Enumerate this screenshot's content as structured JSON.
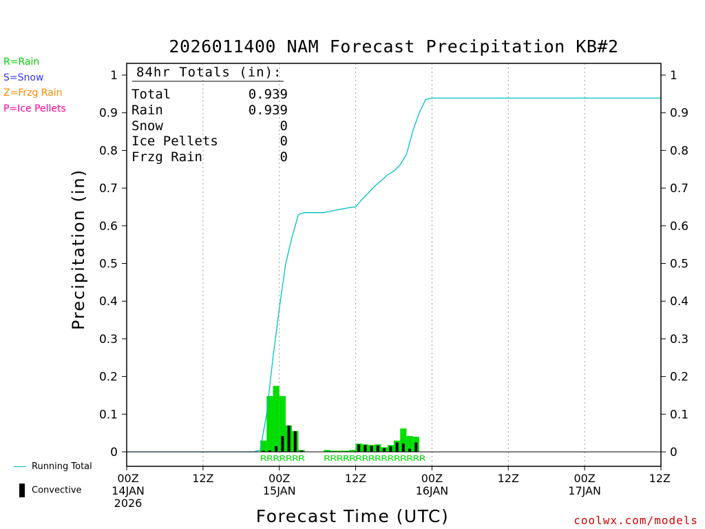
{
  "legend_types": [
    {
      "label": "R=Rain",
      "color": "#00cc00"
    },
    {
      "label": "S=Snow",
      "color": "#3333ff"
    },
    {
      "label": "Z=Frzg Rain",
      "color": "#ff8800"
    },
    {
      "label": "P=Ice Pellets",
      "color": "#ff0099"
    }
  ],
  "footer_legend": {
    "running_total": "Running Total",
    "convective": "Convective"
  },
  "credit": "coolwx.com/models",
  "totals_box": {
    "title": "84hr Totals (in):",
    "rows": [
      {
        "label": "Total",
        "value": "0.939"
      },
      {
        "label": "Rain",
        "value": "0.939"
      },
      {
        "label": "Snow",
        "value": "0"
      },
      {
        "label": "Ice Pellets",
        "value": "0"
      },
      {
        "label": "Frzg Rain",
        "value": "0"
      }
    ]
  },
  "colors": {
    "running_total": "#00bfbf",
    "rain_bar": "#00dd00",
    "convective_bar": "#000000",
    "grid": "#999999"
  },
  "chart_data": {
    "type": "bar",
    "title": "2026011400 NAM Forecast Precipitation KB#2",
    "xlabel": "Forecast Time (UTC)",
    "ylabel": "Precipitation (in)",
    "xlim": [
      0,
      84
    ],
    "ylim": [
      0,
      1.0
    ],
    "y_ticks": [
      "0",
      "0.1",
      "0.2",
      "0.3",
      "0.4",
      "0.5",
      "0.6",
      "0.7",
      "0.8",
      "0.9",
      "1"
    ],
    "x_ticks": [
      {
        "hour": 0,
        "lines": [
          "00Z",
          "14JAN",
          "2026"
        ]
      },
      {
        "hour": 12,
        "lines": [
          "12Z"
        ]
      },
      {
        "hour": 24,
        "lines": [
          "00Z",
          "15JAN"
        ]
      },
      {
        "hour": 36,
        "lines": [
          "12Z"
        ]
      },
      {
        "hour": 48,
        "lines": [
          "00Z",
          "16JAN"
        ]
      },
      {
        "hour": 60,
        "lines": [
          "12Z"
        ]
      },
      {
        "hour": 72,
        "lines": [
          "00Z",
          "17JAN"
        ]
      },
      {
        "hour": 84,
        "lines": [
          "12Z"
        ]
      }
    ],
    "grid_hours": [
      12,
      24,
      36,
      48,
      60,
      72
    ],
    "bar_width_hours": 1,
    "precip_bars": [
      {
        "hour": 21.5,
        "value": 0.03
      },
      {
        "hour": 22.5,
        "value": 0.148
      },
      {
        "hour": 23.5,
        "value": 0.175
      },
      {
        "hour": 24.5,
        "value": 0.148
      },
      {
        "hour": 25.5,
        "value": 0.07
      },
      {
        "hour": 26.5,
        "value": 0.055
      },
      {
        "hour": 27.5,
        "value": 0.005
      },
      {
        "hour": 31.5,
        "value": 0.005
      },
      {
        "hour": 32.5,
        "value": 0.003
      },
      {
        "hour": 33.5,
        "value": 0.003
      },
      {
        "hour": 34.5,
        "value": 0.003
      },
      {
        "hour": 35.5,
        "value": 0.005
      },
      {
        "hour": 36.5,
        "value": 0.022
      },
      {
        "hour": 37.5,
        "value": 0.02
      },
      {
        "hour": 38.5,
        "value": 0.018
      },
      {
        "hour": 39.5,
        "value": 0.02
      },
      {
        "hour": 40.5,
        "value": 0.012
      },
      {
        "hour": 41.5,
        "value": 0.018
      },
      {
        "hour": 42.5,
        "value": 0.03
      },
      {
        "hour": 43.5,
        "value": 0.062
      },
      {
        "hour": 44.5,
        "value": 0.042
      },
      {
        "hour": 45.5,
        "value": 0.04
      }
    ],
    "convective_bars": [
      {
        "hour": 21.5,
        "value": 0.003
      },
      {
        "hour": 22.5,
        "value": 0.004
      },
      {
        "hour": 23.5,
        "value": 0.015
      },
      {
        "hour": 24.5,
        "value": 0.042
      },
      {
        "hour": 25.5,
        "value": 0.07
      },
      {
        "hour": 26.5,
        "value": 0.055
      },
      {
        "hour": 27.5,
        "value": 0.003
      },
      {
        "hour": 36.5,
        "value": 0.02
      },
      {
        "hour": 37.5,
        "value": 0.018
      },
      {
        "hour": 38.5,
        "value": 0.016
      },
      {
        "hour": 39.5,
        "value": 0.017
      },
      {
        "hour": 40.5,
        "value": 0.01
      },
      {
        "hour": 41.5,
        "value": 0.015
      },
      {
        "hour": 42.5,
        "value": 0.025
      },
      {
        "hour": 43.5,
        "value": 0.022
      },
      {
        "hour": 44.5,
        "value": 0.008
      },
      {
        "hour": 45.5,
        "value": 0.025
      }
    ],
    "running_total": [
      {
        "hour": 0,
        "value": 0
      },
      {
        "hour": 20,
        "value": 0
      },
      {
        "hour": 21,
        "value": 0.005
      },
      {
        "hour": 22,
        "value": 0.1
      },
      {
        "hour": 23,
        "value": 0.25
      },
      {
        "hour": 24,
        "value": 0.38
      },
      {
        "hour": 25,
        "value": 0.5
      },
      {
        "hour": 26,
        "value": 0.57
      },
      {
        "hour": 27,
        "value": 0.63
      },
      {
        "hour": 28,
        "value": 0.635
      },
      {
        "hour": 31,
        "value": 0.635
      },
      {
        "hour": 33,
        "value": 0.642
      },
      {
        "hour": 35,
        "value": 0.648
      },
      {
        "hour": 36,
        "value": 0.65
      },
      {
        "hour": 37,
        "value": 0.67
      },
      {
        "hour": 39,
        "value": 0.705
      },
      {
        "hour": 41,
        "value": 0.735
      },
      {
        "hour": 42,
        "value": 0.745
      },
      {
        "hour": 43,
        "value": 0.762
      },
      {
        "hour": 44,
        "value": 0.79
      },
      {
        "hour": 45,
        "value": 0.852
      },
      {
        "hour": 46,
        "value": 0.9
      },
      {
        "hour": 47,
        "value": 0.935
      },
      {
        "hour": 48,
        "value": 0.939
      },
      {
        "hour": 84,
        "value": 0.939
      }
    ],
    "precip_type_codes": [
      {
        "text": "RRRRRRR",
        "hour_start": 21,
        "hour_end": 28
      },
      {
        "text": "RRRRRRRRRRRRRRRR",
        "hour_start": 31,
        "hour_end": 47
      }
    ]
  }
}
